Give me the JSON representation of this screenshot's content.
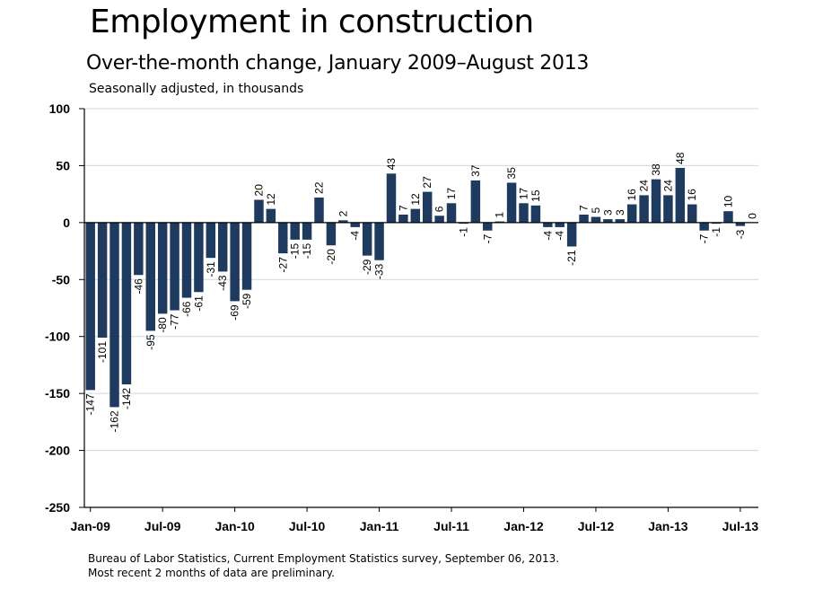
{
  "chart_data": {
    "type": "bar",
    "title": "Employment in construction",
    "subtitle": "Over-the-month change, January 2009–August 2013",
    "units": "Seasonally adjusted, in thousands",
    "xlabel": "",
    "ylabel": "",
    "ylim": [
      -250,
      100
    ],
    "yticks": [
      "100",
      "50",
      "0",
      "-50",
      "-100",
      "-150",
      "-200",
      "-250"
    ],
    "grid": true,
    "bar_color": "#1f3a5f",
    "grid_color": "#c5dbe8",
    "xtick_labels": [
      {
        "label": "Jan-09",
        "index": 0
      },
      {
        "label": "Jul-09",
        "index": 6
      },
      {
        "label": "Jan-10",
        "index": 12
      },
      {
        "label": "Jul-10",
        "index": 18
      },
      {
        "label": "Jan-11",
        "index": 24
      },
      {
        "label": "Jul-11",
        "index": 30
      },
      {
        "label": "Jan-12",
        "index": 36
      },
      {
        "label": "Jul-12",
        "index": 42
      },
      {
        "label": "Jan-13",
        "index": 48
      },
      {
        "label": "Jul-13",
        "index": 54
      }
    ],
    "series": [
      {
        "name": "Employment in construction",
        "values": [
          -147,
          -101,
          -162,
          -142,
          -46,
          -95,
          -80,
          -77,
          -66,
          -61,
          -31,
          -43,
          -69,
          -59,
          20,
          12,
          -27,
          -15,
          -15,
          22,
          -20,
          2,
          -4,
          -29,
          -33,
          43,
          7,
          12,
          27,
          6,
          17,
          -1,
          37,
          -7,
          1,
          35,
          17,
          15,
          -4,
          -4,
          -21,
          7,
          5,
          3,
          3,
          16,
          24,
          38,
          24,
          48,
          16,
          -7,
          -1,
          10,
          -3,
          0
        ],
        "labels": [
          "-147",
          "-101",
          "-162",
          "-142",
          "-46",
          "-95",
          "-80",
          "-77",
          "-66",
          "-61",
          "-31",
          "-43",
          "-69",
          "-59",
          "20",
          "12",
          "-27",
          "-15",
          "-15",
          "22",
          "-20",
          "2",
          "-4",
          "-29",
          "-33",
          "43",
          "7",
          "12",
          "27",
          "6",
          "17",
          "-1",
          "37",
          "-7",
          "1",
          "35",
          "17",
          "15",
          "-4",
          "-4",
          "-21",
          "7",
          "5",
          "3",
          "3",
          "16",
          "24",
          "38",
          "24",
          "48",
          "16",
          "-7",
          "-1",
          "10",
          "-3",
          "0"
        ]
      }
    ]
  },
  "source": {
    "line1": "Bureau of Labor Statistics, Current Employment Statistics survey, September 06, 2013.",
    "line2": "Most recent 2 months of data are preliminary."
  }
}
